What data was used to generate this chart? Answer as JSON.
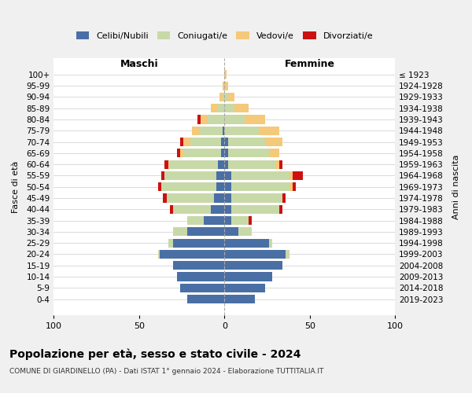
{
  "age_groups": [
    "0-4",
    "5-9",
    "10-14",
    "15-19",
    "20-24",
    "25-29",
    "30-34",
    "35-39",
    "40-44",
    "45-49",
    "50-54",
    "55-59",
    "60-64",
    "65-69",
    "70-74",
    "75-79",
    "80-84",
    "85-89",
    "90-94",
    "95-99",
    "100+"
  ],
  "birth_years": [
    "2019-2023",
    "2014-2018",
    "2009-2013",
    "2004-2008",
    "1999-2003",
    "1994-1998",
    "1989-1993",
    "1984-1988",
    "1979-1983",
    "1974-1978",
    "1969-1973",
    "1964-1968",
    "1959-1963",
    "1954-1958",
    "1949-1953",
    "1944-1948",
    "1939-1943",
    "1934-1938",
    "1929-1933",
    "1924-1928",
    "≤ 1923"
  ],
  "colors": {
    "celibi": "#4a6fa5",
    "coniugati": "#c8d9a8",
    "vedovi": "#f5c97a",
    "divorziati": "#cc1111"
  },
  "males": {
    "celibi": [
      22,
      26,
      28,
      30,
      38,
      30,
      22,
      12,
      8,
      6,
      5,
      5,
      4,
      2,
      2,
      1,
      0,
      0,
      0,
      0,
      0
    ],
    "coniugati": [
      0,
      0,
      0,
      0,
      1,
      3,
      8,
      10,
      22,
      28,
      32,
      30,
      28,
      22,
      18,
      14,
      10,
      4,
      1,
      0,
      0
    ],
    "vedovi": [
      0,
      0,
      0,
      0,
      0,
      0,
      0,
      0,
      0,
      0,
      0,
      0,
      1,
      2,
      4,
      4,
      4,
      4,
      2,
      1,
      0
    ],
    "divorziati": [
      0,
      0,
      0,
      0,
      0,
      0,
      0,
      0,
      2,
      2,
      2,
      2,
      2,
      2,
      2,
      0,
      2,
      0,
      0,
      0,
      0
    ]
  },
  "females": {
    "nubili": [
      18,
      24,
      28,
      34,
      36,
      26,
      8,
      4,
      4,
      4,
      4,
      4,
      2,
      2,
      2,
      0,
      0,
      0,
      0,
      0,
      0
    ],
    "coniugati": [
      0,
      0,
      0,
      0,
      2,
      2,
      8,
      10,
      28,
      30,
      34,
      34,
      28,
      24,
      22,
      20,
      12,
      6,
      2,
      0,
      0
    ],
    "vedovi": [
      0,
      0,
      0,
      0,
      0,
      0,
      0,
      0,
      0,
      0,
      2,
      2,
      2,
      6,
      10,
      12,
      12,
      8,
      4,
      2,
      1
    ],
    "divorziati": [
      0,
      0,
      0,
      0,
      0,
      0,
      0,
      2,
      2,
      2,
      2,
      6,
      2,
      0,
      0,
      0,
      0,
      0,
      0,
      0,
      0
    ]
  },
  "xlim": 100,
  "title": "Popolazione per età, sesso e stato civile - 2024",
  "subtitle": "COMUNE DI GIARDINELLO (PA) - Dati ISTAT 1° gennaio 2024 - Elaborazione TUTTITALIA.IT",
  "xlabel_left": "Maschi",
  "xlabel_right": "Femmine",
  "ylabel_left": "Fasce di età",
  "ylabel_right": "Anni di nascita",
  "bg_color": "#f0f0f0",
  "plot_bg": "#ffffff"
}
